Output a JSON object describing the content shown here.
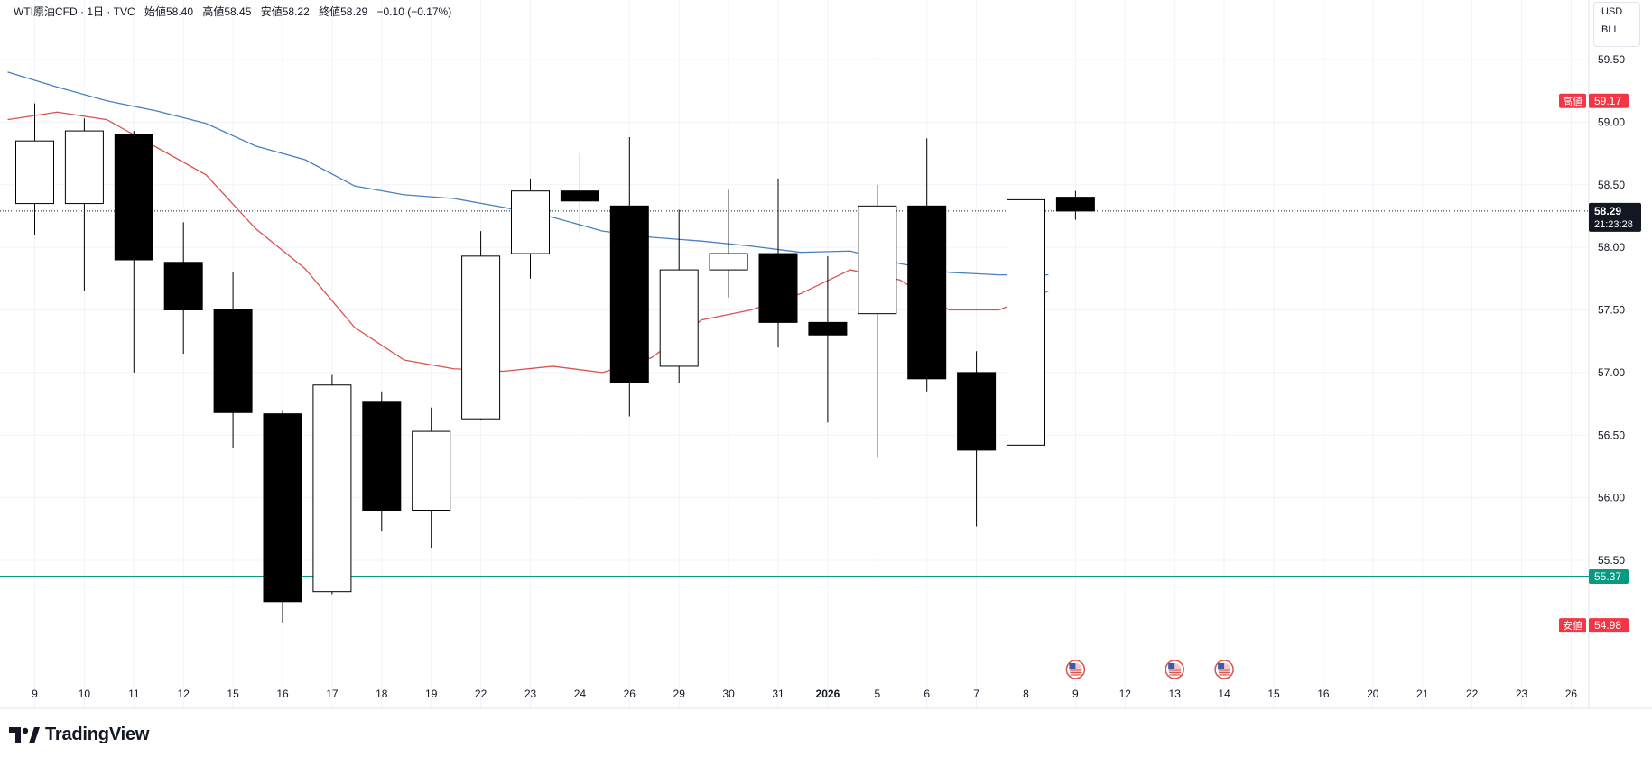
{
  "header": {
    "symbol": "WTI原油CFD · 1日 · TVC",
    "open": "始値58.40",
    "high": "高値58.45",
    "low": "安値58.22",
    "close": "終値58.29",
    "change": "−0.10 (−0.17%)"
  },
  "currency": {
    "ccy": "USD",
    "unit": "BLL"
  },
  "branding": {
    "name": "TradingView"
  },
  "colors": {
    "ma_blue": "#4a7fc1",
    "ma_red": "#d9534f",
    "support": "#089981",
    "high_low_badge": "#f23645",
    "price_badge": "#131722"
  },
  "chart_data": {
    "type": "candlestick",
    "ylim": [
      54.7,
      59.9
    ],
    "y_ticks": [
      "59.50",
      "59.00",
      "58.50",
      "58.00",
      "57.50",
      "57.00",
      "56.50",
      "56.00",
      "55.50"
    ],
    "x_ticks": [
      "9",
      "10",
      "11",
      "12",
      "15",
      "16",
      "17",
      "18",
      "19",
      "22",
      "23",
      "24",
      "26",
      "29",
      "30",
      "31",
      "2026",
      "5",
      "6",
      "7",
      "8",
      "9",
      "12",
      "13",
      "14",
      "15",
      "16",
      "20",
      "21",
      "22",
      "23",
      "26"
    ],
    "candles": [
      {
        "date": "9",
        "o": 58.35,
        "h": 59.15,
        "l": 58.1,
        "c": 58.85
      },
      {
        "date": "10",
        "o": 58.35,
        "h": 59.03,
        "l": 57.65,
        "c": 58.93
      },
      {
        "date": "11",
        "o": 58.9,
        "h": 58.93,
        "l": 57.0,
        "c": 57.9
      },
      {
        "date": "12",
        "o": 57.88,
        "h": 58.2,
        "l": 57.15,
        "c": 57.5
      },
      {
        "date": "15",
        "o": 57.5,
        "h": 57.8,
        "l": 56.4,
        "c": 56.68
      },
      {
        "date": "16",
        "o": 56.67,
        "h": 56.7,
        "l": 55.0,
        "c": 55.17
      },
      {
        "date": "17",
        "o": 55.25,
        "h": 56.98,
        "l": 55.23,
        "c": 56.9
      },
      {
        "date": "18",
        "o": 56.77,
        "h": 56.85,
        "l": 55.73,
        "c": 55.9
      },
      {
        "date": "19",
        "o": 55.9,
        "h": 56.72,
        "l": 55.6,
        "c": 56.53
      },
      {
        "date": "22",
        "o": 56.63,
        "h": 58.13,
        "l": 56.62,
        "c": 57.93
      },
      {
        "date": "23",
        "o": 57.95,
        "h": 58.55,
        "l": 57.75,
        "c": 58.45
      },
      {
        "date": "24",
        "o": 58.45,
        "h": 58.75,
        "l": 58.12,
        "c": 58.37
      },
      {
        "date": "26",
        "o": 58.33,
        "h": 58.88,
        "l": 56.65,
        "c": 56.92
      },
      {
        "date": "29",
        "o": 57.05,
        "h": 58.3,
        "l": 56.92,
        "c": 57.82
      },
      {
        "date": "30",
        "o": 57.82,
        "h": 58.46,
        "l": 57.6,
        "c": 57.95
      },
      {
        "date": "31",
        "o": 57.95,
        "h": 58.55,
        "l": 57.2,
        "c": 57.4
      },
      {
        "date": "2026",
        "o": 57.4,
        "h": 57.93,
        "l": 56.6,
        "c": 57.3
      },
      {
        "date": "5",
        "o": 57.47,
        "h": 58.5,
        "l": 56.32,
        "c": 58.33
      },
      {
        "date": "6",
        "o": 58.33,
        "h": 58.87,
        "l": 56.85,
        "c": 56.95
      },
      {
        "date": "7",
        "o": 57.0,
        "h": 57.17,
        "l": 55.77,
        "c": 56.38
      },
      {
        "date": "8",
        "o": 56.42,
        "h": 58.73,
        "l": 55.98,
        "c": 58.38
      },
      {
        "date": "9",
        "o": 58.4,
        "h": 58.45,
        "l": 58.22,
        "c": 58.29
      }
    ],
    "ma_blue": [
      59.4,
      59.28,
      59.17,
      59.09,
      58.99,
      58.81,
      58.7,
      58.49,
      58.42,
      58.39,
      58.32,
      58.24,
      58.13,
      58.08,
      58.05,
      58.01,
      57.96,
      57.97,
      57.87,
      57.8,
      57.78,
      57.78
    ],
    "ma_red": [
      59.02,
      59.08,
      59.02,
      58.8,
      58.58,
      58.15,
      57.83,
      57.36,
      57.1,
      57.03,
      57.01,
      57.05,
      57.0,
      57.12,
      57.42,
      57.5,
      57.63,
      57.82,
      57.74,
      57.5,
      57.5,
      57.65
    ],
    "support_level": 55.37,
    "support_label": "55.37",
    "high_badge": {
      "label": "高値",
      "value": "59.17",
      "price": 59.17
    },
    "low_badge": {
      "label": "安値",
      "value": "54.98",
      "price": 54.98
    },
    "last_price": {
      "value": "58.29",
      "countdown": "21:23:28",
      "price": 58.29
    },
    "event_markers": [
      "9",
      "13",
      "14"
    ]
  }
}
